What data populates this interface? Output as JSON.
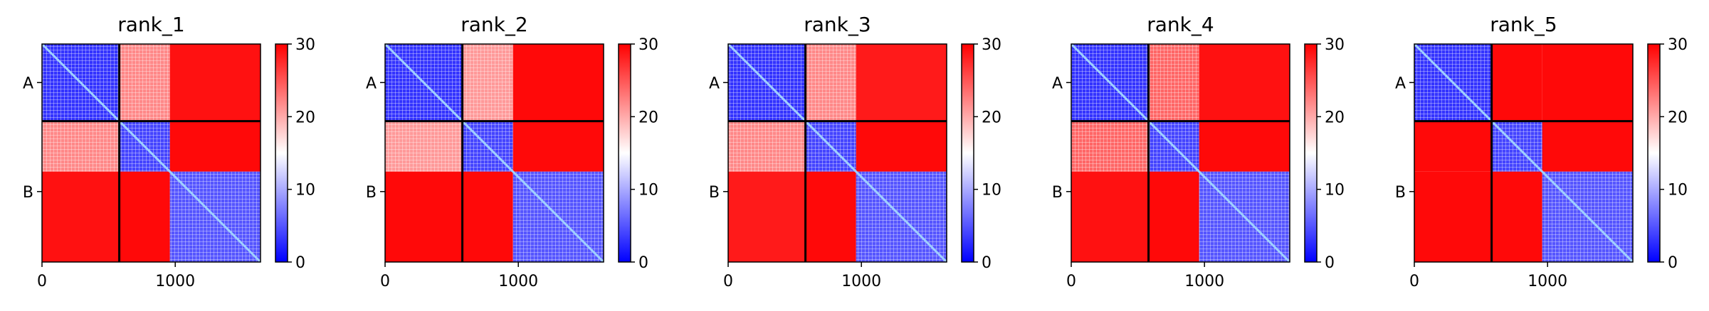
{
  "chart_data": [
    {
      "type": "heatmap",
      "title": "rank_1",
      "chain_labels": [
        "A",
        "B"
      ],
      "chain_boundary": 580,
      "length": 1640,
      "xticks": [
        {
          "value": 0,
          "label": "0"
        },
        {
          "value": 1000,
          "label": "1000"
        }
      ],
      "colorbar": {
        "range": [
          0,
          30
        ],
        "ticks": [
          "0",
          "10",
          "20",
          "30"
        ],
        "colors": [
          "#0000ff",
          "#ffffff",
          "#ff0000"
        ]
      },
      "domains": [
        [
          0,
          580
        ],
        [
          580,
          960
        ],
        [
          960,
          1640
        ]
      ],
      "pair_values": {
        "0-0": 3,
        "1-1": 4,
        "2-2": 5,
        "0-1": 22,
        "0-2": 29,
        "1-2": 29.5
      }
    },
    {
      "type": "heatmap",
      "title": "rank_2",
      "chain_labels": [
        "A",
        "B"
      ],
      "chain_boundary": 580,
      "length": 1640,
      "xticks": [
        {
          "value": 0,
          "label": "0"
        },
        {
          "value": 1000,
          "label": "1000"
        }
      ],
      "colorbar": {
        "range": [
          0,
          30
        ],
        "ticks": [
          "0",
          "10",
          "20",
          "30"
        ],
        "colors": [
          "#0000ff",
          "#ffffff",
          "#ff0000"
        ]
      },
      "domains": [
        [
          0,
          580
        ],
        [
          580,
          960
        ],
        [
          960,
          1640
        ]
      ],
      "pair_values": {
        "0-0": 3,
        "1-1": 4,
        "2-2": 5,
        "0-1": 21,
        "0-2": 29.5,
        "1-2": 29.5
      }
    },
    {
      "type": "heatmap",
      "title": "rank_3",
      "chain_labels": [
        "A",
        "B"
      ],
      "chain_boundary": 580,
      "length": 1640,
      "xticks": [
        {
          "value": 0,
          "label": "0"
        },
        {
          "value": 1000,
          "label": "1000"
        }
      ],
      "colorbar": {
        "range": [
          0,
          30
        ],
        "ticks": [
          "0",
          "10",
          "20",
          "30"
        ],
        "colors": [
          "#0000ff",
          "#ffffff",
          "#ff0000"
        ]
      },
      "domains": [
        [
          0,
          580
        ],
        [
          580,
          960
        ],
        [
          960,
          1640
        ]
      ],
      "pair_values": {
        "0-0": 3,
        "1-1": 4,
        "2-2": 5,
        "0-1": 22,
        "0-2": 28.5,
        "1-2": 29.5
      }
    },
    {
      "type": "heatmap",
      "title": "rank_4",
      "chain_labels": [
        "A",
        "B"
      ],
      "chain_boundary": 580,
      "length": 1640,
      "xticks": [
        {
          "value": 0,
          "label": "0"
        },
        {
          "value": 1000,
          "label": "1000"
        }
      ],
      "colorbar": {
        "range": [
          0,
          30
        ],
        "ticks": [
          "0",
          "10",
          "20",
          "30"
        ],
        "colors": [
          "#0000ff",
          "#ffffff",
          "#ff0000"
        ]
      },
      "domains": [
        [
          0,
          580
        ],
        [
          580,
          960
        ],
        [
          960,
          1640
        ]
      ],
      "pair_values": {
        "0-0": 3,
        "1-1": 4,
        "2-2": 5,
        "0-1": 24,
        "0-2": 29,
        "1-2": 29.5
      }
    },
    {
      "type": "heatmap",
      "title": "rank_5",
      "chain_labels": [
        "A",
        "B"
      ],
      "chain_boundary": 580,
      "length": 1640,
      "xticks": [
        {
          "value": 0,
          "label": "0"
        },
        {
          "value": 1000,
          "label": "1000"
        }
      ],
      "colorbar": {
        "range": [
          0,
          30
        ],
        "ticks": [
          "0",
          "10",
          "20",
          "30"
        ],
        "colors": [
          "#0000ff",
          "#ffffff",
          "#ff0000"
        ]
      },
      "domains": [
        [
          0,
          580
        ],
        [
          580,
          960
        ],
        [
          960,
          1640
        ]
      ],
      "pair_values": {
        "0-0": 3,
        "1-1": 4,
        "2-2": 5,
        "0-1": 29.5,
        "0-2": 29.5,
        "1-2": 29.5
      }
    }
  ]
}
